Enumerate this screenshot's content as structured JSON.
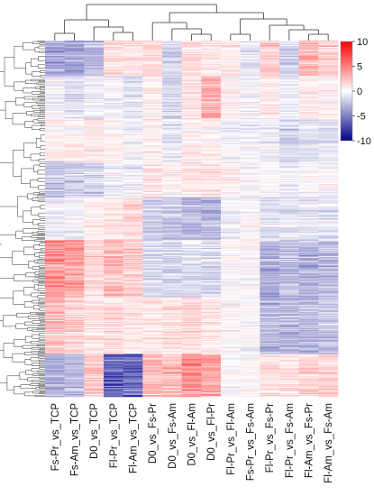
{
  "chart_data": {
    "type": "heatmap",
    "title": "",
    "xlabel": "",
    "ylabel": "",
    "columns": [
      "Fs-Pr_vs_TCP",
      "Fs-Am_vs_TCP",
      "D0_vs_TCP",
      "Fl-Pr_vs_TCP",
      "Fl-Am_vs_TCP",
      "D0_vs_Fs-Pr",
      "D0_vs_Fs-Am",
      "D0_vs_Fl-Am",
      "D0_vs_Fl-Pr",
      "Fl-Pr_vs_Fl-Am",
      "Fs-Pr_vs_Fs-Am",
      "Fl-Pr_vs_Fs-Pr",
      "Fl-Pr_vs_Fs-Am",
      "Fl-Am_vs_Fs-Pr",
      "Fl-Am_vs_Fs-Am"
    ],
    "column_dendrogram": true,
    "row_dendrogram": true,
    "approximate_row_count": 400,
    "value_range": [
      -10,
      10
    ],
    "colorbar": {
      "ticks": [
        10,
        5,
        0,
        -5,
        -10
      ],
      "colors": {
        "high": "#ff0000",
        "mid": "#ffffff",
        "low": "#00008b"
      },
      "position": "right"
    },
    "row_blocks_mean_values": [
      {
        "rows": 0.0,
        "values": [
          -3.0,
          -3.5,
          -2.5,
          1.5,
          1.0,
          1.5,
          -1.5,
          1.5,
          1.0,
          1.0,
          -1.0,
          2.0,
          -1.5,
          2.5,
          2.0
        ]
      },
      {
        "rows": 0.1,
        "values": [
          -0.5,
          -1.0,
          -0.5,
          -0.5,
          -1.0,
          0.5,
          -1.5,
          1.0,
          3.0,
          0.5,
          -0.5,
          1.0,
          -0.5,
          0.5,
          0.5
        ]
      },
      {
        "rows": 0.22,
        "values": [
          0.5,
          0.5,
          0.8,
          0.5,
          -0.5,
          0.5,
          -1.0,
          0.5,
          0.5,
          -0.5,
          -0.5,
          -0.5,
          -1.5,
          -1.0,
          -1.0
        ]
      },
      {
        "rows": 0.34,
        "values": [
          -2.0,
          -2.0,
          -1.5,
          -0.5,
          -0.5,
          1.0,
          0.5,
          1.0,
          1.0,
          0.5,
          0.0,
          0.0,
          -0.5,
          0.0,
          0.0
        ]
      },
      {
        "rows": 0.44,
        "values": [
          -0.5,
          -0.5,
          0.5,
          1.0,
          1.5,
          -2.0,
          -2.0,
          -2.5,
          -2.5,
          -0.5,
          0.0,
          -1.0,
          -1.0,
          -1.0,
          -1.0
        ]
      },
      {
        "rows": 0.56,
        "values": [
          4.0,
          3.5,
          1.5,
          2.5,
          2.0,
          -1.5,
          -1.5,
          -1.0,
          -1.5,
          0.0,
          0.0,
          -3.0,
          -2.5,
          -3.0,
          -2.5
        ]
      },
      {
        "rows": 0.72,
        "values": [
          2.5,
          2.0,
          1.0,
          1.5,
          1.0,
          1.0,
          1.0,
          1.5,
          1.0,
          0.0,
          0.0,
          -2.5,
          -2.5,
          -2.5,
          -2.0
        ]
      },
      {
        "rows": 0.88,
        "values": [
          -3.0,
          -2.5,
          2.0,
          -6.0,
          -6.0,
          2.5,
          2.5,
          4.0,
          3.5,
          0.0,
          0.0,
          1.0,
          1.0,
          1.5,
          1.5
        ]
      }
    ]
  }
}
